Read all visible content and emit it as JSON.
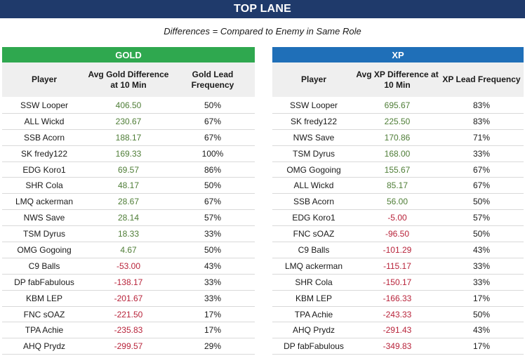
{
  "title": "TOP LANE",
  "subtitle": "Differences = Compared to Enemy in Same Role",
  "colors": {
    "banner": "#1f3a6b",
    "gold_header": "#2fa84f",
    "xp_header": "#1f6fb8",
    "positive": "#4e7d36",
    "negative": "#b8233a"
  },
  "gold": {
    "header": "GOLD",
    "columns": [
      "Player",
      "Avg Gold Difference at 10 Min",
      "Gold Lead Frequency"
    ],
    "rows": [
      [
        "SSW Looper",
        "406.50",
        "50%"
      ],
      [
        "ALL Wickd",
        "230.67",
        "67%"
      ],
      [
        "SSB Acorn",
        "188.17",
        "67%"
      ],
      [
        "SK fredy122",
        "169.33",
        "100%"
      ],
      [
        "EDG Koro1",
        "69.57",
        "86%"
      ],
      [
        "SHR Cola",
        "48.17",
        "50%"
      ],
      [
        "LMQ ackerman",
        "28.67",
        "67%"
      ],
      [
        "NWS Save",
        "28.14",
        "57%"
      ],
      [
        "TSM Dyrus",
        "18.33",
        "33%"
      ],
      [
        "OMG Gogoing",
        "4.67",
        "50%"
      ],
      [
        "C9 Balls",
        "-53.00",
        "43%"
      ],
      [
        "DP fabFabulous",
        "-138.17",
        "33%"
      ],
      [
        "KBM LEP",
        "-201.67",
        "33%"
      ],
      [
        "FNC sOAZ",
        "-221.50",
        "17%"
      ],
      [
        "TPA Achie",
        "-235.83",
        "17%"
      ],
      [
        "AHQ Prydz",
        "-299.57",
        "29%"
      ]
    ]
  },
  "xp": {
    "header": "XP",
    "columns": [
      "Player",
      "Avg XP Difference at 10 Min",
      "XP Lead Frequency"
    ],
    "rows": [
      [
        "SSW Looper",
        "695.67",
        "83%"
      ],
      [
        "SK fredy122",
        "225.50",
        "83%"
      ],
      [
        "NWS Save",
        "170.86",
        "71%"
      ],
      [
        "TSM Dyrus",
        "168.00",
        "33%"
      ],
      [
        "OMG Gogoing",
        "155.67",
        "67%"
      ],
      [
        "ALL Wickd",
        "85.17",
        "67%"
      ],
      [
        "SSB Acorn",
        "56.00",
        "50%"
      ],
      [
        "EDG Koro1",
        "-5.00",
        "57%"
      ],
      [
        "FNC sOAZ",
        "-96.50",
        "50%"
      ],
      [
        "C9 Balls",
        "-101.29",
        "43%"
      ],
      [
        "LMQ ackerman",
        "-115.17",
        "33%"
      ],
      [
        "SHR Cola",
        "-150.17",
        "33%"
      ],
      [
        "KBM LEP",
        "-166.33",
        "17%"
      ],
      [
        "TPA Achie",
        "-243.33",
        "50%"
      ],
      [
        "AHQ Prydz",
        "-291.43",
        "43%"
      ],
      [
        "DP fabFabulous",
        "-349.83",
        "17%"
      ]
    ]
  }
}
